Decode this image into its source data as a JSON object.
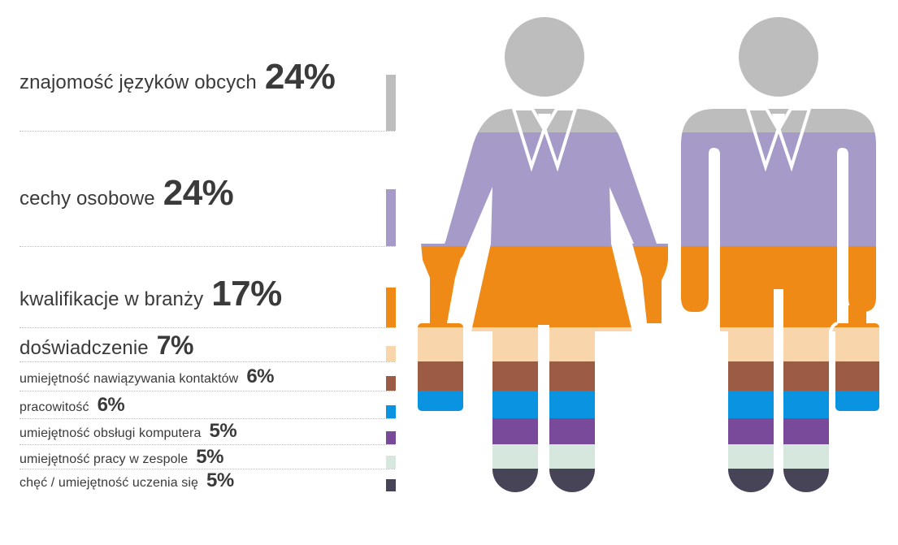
{
  "chart_data": {
    "type": "bar",
    "categories": [
      "znajomość języków obcych",
      "cechy osobowe",
      "kwalifikacje w branży",
      "doświadczenie",
      "umiejętność nawiązywania kontaktów",
      "pracowitość",
      "umiejętność obsługi komputera",
      "umiejętność pracy w zespole",
      "chęć / umiejętność uczenia się"
    ],
    "values": [
      24,
      24,
      17,
      7,
      6,
      6,
      5,
      5,
      5
    ],
    "value_labels": [
      "24%",
      "24%",
      "17%",
      "7%",
      "6%",
      "6%",
      "5%",
      "5%",
      "5%"
    ],
    "colors": [
      "#bdbdbd",
      "#a69ac8",
      "#ef8a17",
      "#f8d5aa",
      "#9b5b45",
      "#0a93e0",
      "#7a4a9a",
      "#d6e8de",
      "#474457"
    ],
    "title": "",
    "xlabel": "",
    "ylabel": "",
    "unit": "%",
    "grid": false
  }
}
